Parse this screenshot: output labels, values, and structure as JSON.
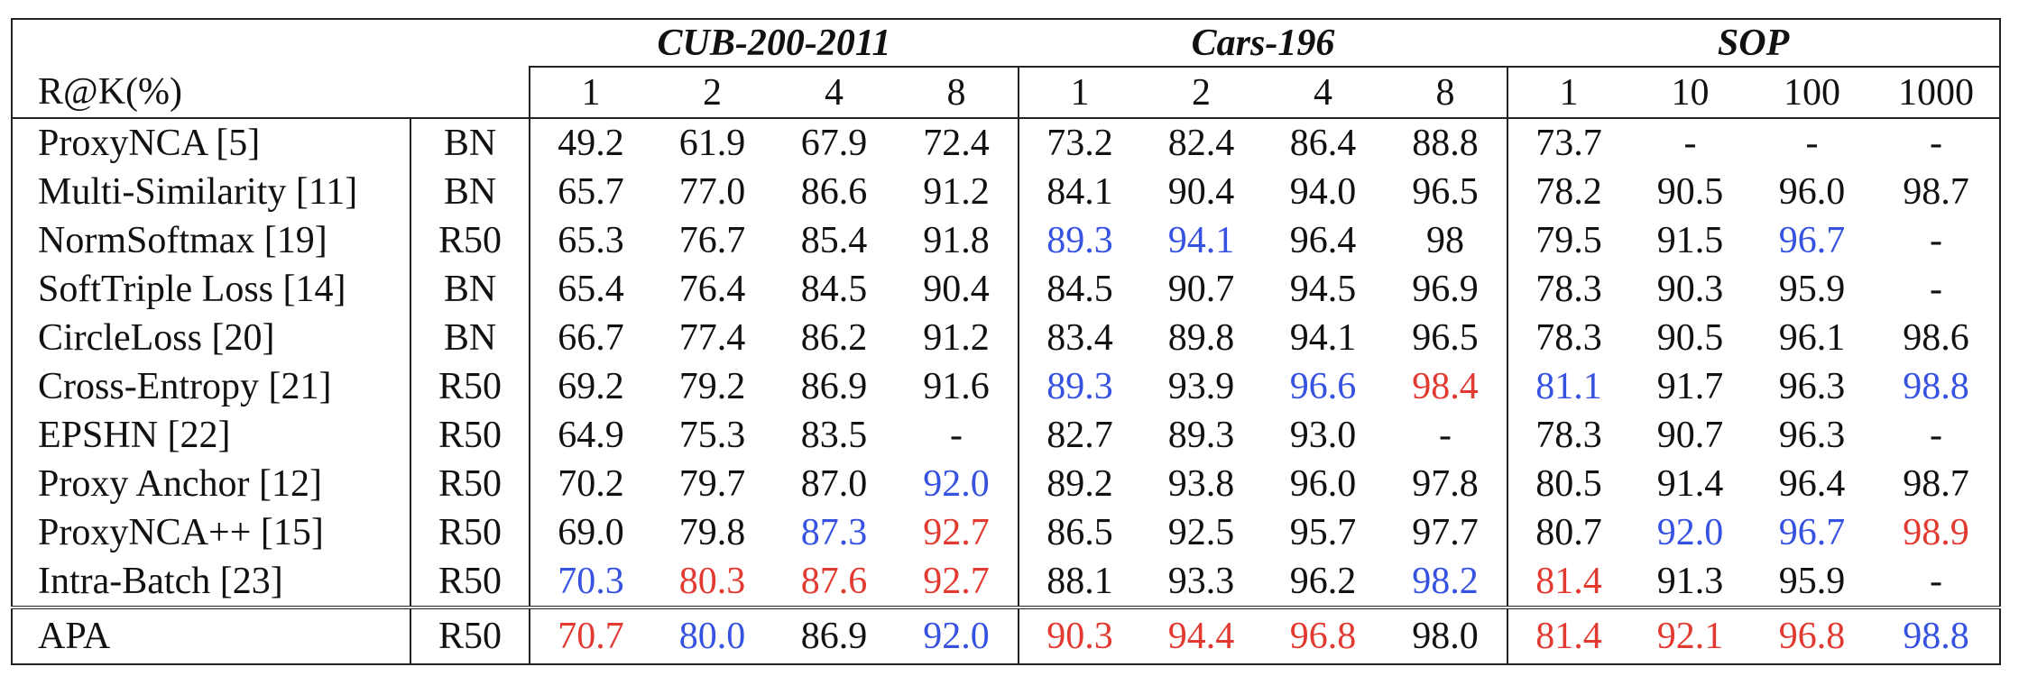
{
  "table": {
    "corner_label": "R@K(%)",
    "datasets": [
      {
        "name": "CUB-200-2011",
        "ks": [
          "1",
          "2",
          "4",
          "8"
        ]
      },
      {
        "name": "Cars-196",
        "ks": [
          "1",
          "2",
          "4",
          "8"
        ]
      },
      {
        "name": "SOP",
        "ks": [
          "1",
          "10",
          "100",
          "1000"
        ]
      }
    ],
    "highlight_colors": {
      "red": "#e23a30",
      "blue": "#3652e0"
    },
    "rows": [
      {
        "method": "ProxyNCA [5]",
        "backbone": "BN",
        "values": [
          "49.2",
          "61.9",
          "67.9",
          "72.4",
          "73.2",
          "82.4",
          "86.4",
          "88.8",
          "73.7",
          "-",
          "-",
          "-"
        ],
        "highlights": [
          "",
          "",
          "",
          "",
          "",
          "",
          "",
          "",
          "",
          "",
          "",
          ""
        ]
      },
      {
        "method": "Multi-Similarity [11]",
        "backbone": "BN",
        "values": [
          "65.7",
          "77.0",
          "86.6",
          "91.2",
          "84.1",
          "90.4",
          "94.0",
          "96.5",
          "78.2",
          "90.5",
          "96.0",
          "98.7"
        ],
        "highlights": [
          "",
          "",
          "",
          "",
          "",
          "",
          "",
          "",
          "",
          "",
          "",
          ""
        ]
      },
      {
        "method": "NormSoftmax [19]",
        "backbone": "R50",
        "values": [
          "65.3",
          "76.7",
          "85.4",
          "91.8",
          "89.3",
          "94.1",
          "96.4",
          "98",
          "79.5",
          "91.5",
          "96.7",
          "-"
        ],
        "highlights": [
          "",
          "",
          "",
          "",
          "blue",
          "blue",
          "",
          "",
          "",
          "",
          "blue",
          ""
        ]
      },
      {
        "method": "SoftTriple Loss [14]",
        "backbone": "BN",
        "values": [
          "65.4",
          "76.4",
          "84.5",
          "90.4",
          "84.5",
          "90.7",
          "94.5",
          "96.9",
          "78.3",
          "90.3",
          "95.9",
          "-"
        ],
        "highlights": [
          "",
          "",
          "",
          "",
          "",
          "",
          "",
          "",
          "",
          "",
          "",
          ""
        ]
      },
      {
        "method": "CircleLoss [20]",
        "backbone": "BN",
        "values": [
          "66.7",
          "77.4",
          "86.2",
          "91.2",
          "83.4",
          "89.8",
          "94.1",
          "96.5",
          "78.3",
          "90.5",
          "96.1",
          "98.6"
        ],
        "highlights": [
          "",
          "",
          "",
          "",
          "",
          "",
          "",
          "",
          "",
          "",
          "",
          ""
        ]
      },
      {
        "method": "Cross-Entropy [21]",
        "backbone": "R50",
        "values": [
          "69.2",
          "79.2",
          "86.9",
          "91.6",
          "89.3",
          "93.9",
          "96.6",
          "98.4",
          "81.1",
          "91.7",
          "96.3",
          "98.8"
        ],
        "highlights": [
          "",
          "",
          "",
          "",
          "blue",
          "",
          "blue",
          "red",
          "blue",
          "",
          "",
          "blue"
        ]
      },
      {
        "method": "EPSHN [22]",
        "backbone": "R50",
        "values": [
          "64.9",
          "75.3",
          "83.5",
          "-",
          "82.7",
          "89.3",
          "93.0",
          "-",
          "78.3",
          "90.7",
          "96.3",
          "-"
        ],
        "highlights": [
          "",
          "",
          "",
          "",
          "",
          "",
          "",
          "",
          "",
          "",
          "",
          ""
        ]
      },
      {
        "method": "Proxy Anchor [12]",
        "backbone": "R50",
        "values": [
          "70.2",
          "79.7",
          "87.0",
          "92.0",
          "89.2",
          "93.8",
          "96.0",
          "97.8",
          "80.5",
          "91.4",
          "96.4",
          "98.7"
        ],
        "highlights": [
          "",
          "",
          "",
          "blue",
          "",
          "",
          "",
          "",
          "",
          "",
          "",
          ""
        ]
      },
      {
        "method": "ProxyNCA++ [15]",
        "backbone": "R50",
        "values": [
          "69.0",
          "79.8",
          "87.3",
          "92.7",
          "86.5",
          "92.5",
          "95.7",
          "97.7",
          "80.7",
          "92.0",
          "96.7",
          "98.9"
        ],
        "highlights": [
          "",
          "",
          "blue",
          "red",
          "",
          "",
          "",
          "",
          "",
          "blue",
          "blue",
          "red"
        ]
      },
      {
        "method": "Intra-Batch [23]",
        "backbone": "R50",
        "values": [
          "70.3",
          "80.3",
          "87.6",
          "92.7",
          "88.1",
          "93.3",
          "96.2",
          "98.2",
          "81.4",
          "91.3",
          "95.9",
          "-"
        ],
        "highlights": [
          "blue",
          "red",
          "red",
          "red",
          "",
          "",
          "",
          "blue",
          "red",
          "",
          "",
          ""
        ]
      },
      {
        "method": "APA",
        "backbone": "R50",
        "values": [
          "70.7",
          "80.0",
          "86.9",
          "92.0",
          "90.3",
          "94.4",
          "96.8",
          "98.0",
          "81.4",
          "92.1",
          "96.8",
          "98.8"
        ],
        "highlights": [
          "red",
          "blue",
          "",
          "blue",
          "red",
          "red",
          "red",
          "",
          "red",
          "red",
          "red",
          "blue"
        ]
      }
    ]
  }
}
